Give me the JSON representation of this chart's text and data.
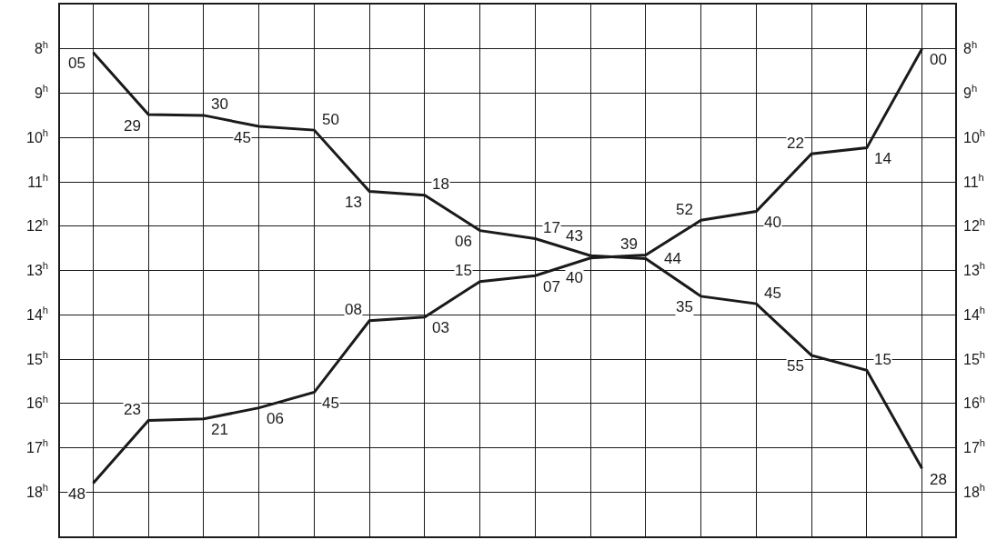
{
  "chart_data": {
    "type": "line",
    "categories": [
      null,
      null,
      null,
      null,
      null,
      null,
      null,
      null,
      null,
      null,
      null,
      null,
      null,
      null,
      null,
      null
    ],
    "ylim": [
      19,
      7
    ],
    "y2lim": [
      19,
      7
    ],
    "yticks": [
      {
        "value": 8,
        "label": "8$^{h}$"
      },
      {
        "value": 9,
        "label": "9$^{h}$"
      },
      {
        "value": 10,
        "label": "10$^{h}$"
      },
      {
        "value": 11,
        "label": "11$^{h}$"
      },
      {
        "value": 12,
        "label": "12$^{h}$"
      },
      {
        "value": 13,
        "label": "13$^{h}$"
      },
      {
        "value": 14,
        "label": "14$^{h}$"
      },
      {
        "value": 15,
        "label": "15$^{h}$"
      },
      {
        "value": 16,
        "label": "16$^{h}$"
      },
      {
        "value": 17,
        "label": "17$^{h}$"
      },
      {
        "value": 18,
        "label": "18$^{h}$"
      }
    ],
    "y2ticks": [
      {
        "value": 8,
        "label": "8$^{h}$"
      },
      {
        "value": 9,
        "label": "9$^{h}$"
      },
      {
        "value": 10,
        "label": "10$^{h}$"
      },
      {
        "value": 11,
        "label": "11$^{h}$"
      },
      {
        "value": 12,
        "label": "12$^{h}$"
      },
      {
        "value": 13,
        "label": "13$^{h}$"
      },
      {
        "value": 14,
        "label": "14$^{h}$"
      },
      {
        "value": 15,
        "label": "15$^{h}$"
      },
      {
        "value": 16,
        "label": "16$^{h}$"
      },
      {
        "value": 17,
        "label": "17$^{h}$"
      },
      {
        "value": 18,
        "label": "18$^{h}$"
      }
    ],
    "grid": true,
    "marker": "none",
    "line_style": "solid",
    "series": [
      {
        "color": "#1a1a1a",
        "values": [
          8.083,
          9.483,
          9.5,
          9.75,
          9.833,
          11.217,
          11.3,
          12.1,
          12.283,
          12.667,
          12.733,
          13.583,
          13.75,
          14.917,
          15.25,
          17.467
        ]
      },
      {
        "color": "#1a1a1a",
        "values": [
          17.8,
          16.383,
          16.35,
          16.1,
          15.75,
          14.133,
          14.05,
          13.25,
          13.117,
          12.717,
          12.65,
          11.867,
          11.667,
          10.367,
          10.233,
          8.0
        ]
      }
    ],
    "annotations": [
      "05",
      "29",
      "30",
      "45",
      "50",
      "13",
      "18",
      "06",
      "17",
      "40",
      "44",
      "35",
      "45",
      "55",
      "15",
      "28",
      "48",
      "23",
      "21",
      "06",
      "45",
      "08",
      "03",
      "15",
      "07",
      "43",
      "39",
      "52",
      "40",
      "22",
      "14",
      "00"
    ]
  }
}
